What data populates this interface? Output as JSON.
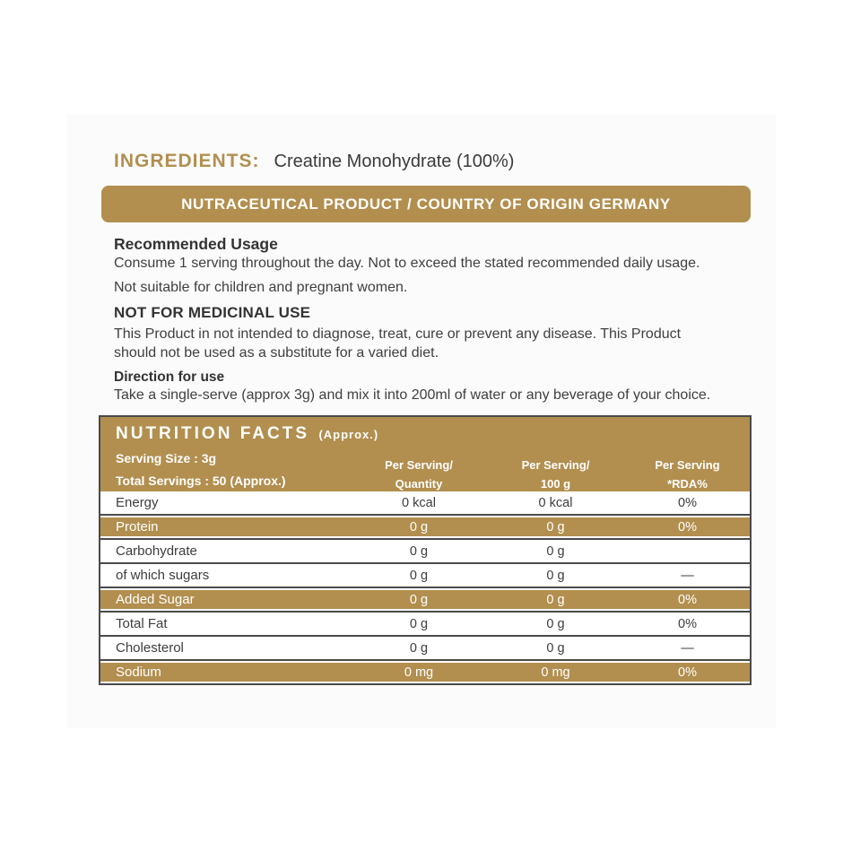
{
  "ingredients": {
    "label": "INGREDIENTS:",
    "value": "Creatine Monohydrate (100%)"
  },
  "banner": {
    "text": "NUTRACEUTICAL PRODUCT / COUNTRY OF ORIGIN GERMANY"
  },
  "usage": {
    "heading": "Recommended Usage",
    "line1": "Consume 1 serving throughout the day. Not to exceed the stated recommended daily usage.",
    "line2": "Not suitable for children and pregnant women."
  },
  "medicinal": {
    "heading": "NOT FOR MEDICINAL USE",
    "body": "This Product in not intended to diagnose, treat, cure or prevent any disease. This Product should not be used as a substitute for a varied diet."
  },
  "direction": {
    "heading": "Direction for use",
    "body": "Take a single-serve (approx 3g) and mix it into 200ml of water or any beverage of your choice."
  },
  "nutrition": {
    "title": "NUTRITION FACTS",
    "title_suffix": "(Approx.)",
    "serving_size": "Serving Size : 3g",
    "total_servings": "Total Servings : 50 (Approx.)",
    "col_heads": [
      {
        "line1": "Per Serving/",
        "line2": "Quantity"
      },
      {
        "line1": "Per Serving/",
        "line2": "100 g"
      },
      {
        "line1": "Per Serving",
        "line2": "*RDA%"
      }
    ],
    "rows": [
      {
        "name": "Energy",
        "qty": "0 kcal",
        "per100": "0 kcal",
        "rda": "0%",
        "highlight": false
      },
      {
        "name": "Protein",
        "qty": "0 g",
        "per100": "0 g",
        "rda": "0%",
        "highlight": true
      },
      {
        "name": "Carbohydrate",
        "qty": "0 g",
        "per100": "0 g",
        "rda": "",
        "highlight": false
      },
      {
        "name": "of which sugars",
        "qty": "0 g",
        "per100": "0 g",
        "rda": "—",
        "highlight": false
      },
      {
        "name": "Added Sugar",
        "qty": "0 g",
        "per100": "0 g",
        "rda": "0%",
        "highlight": true
      },
      {
        "name": "Total Fat",
        "qty": "0 g",
        "per100": "0 g",
        "rda": "0%",
        "highlight": false
      },
      {
        "name": "Cholesterol",
        "qty": "0 g",
        "per100": "0 g",
        "rda": "—",
        "highlight": false
      },
      {
        "name": "Sodium",
        "qty": "0 mg",
        "per100": "0 mg",
        "rda": "0%",
        "highlight": true
      }
    ]
  },
  "colors": {
    "gold": "#B28F4F",
    "text_dark": "#3C3C3C",
    "table_border": "#4A4A4A",
    "banner_text": "#FFFFFF"
  }
}
